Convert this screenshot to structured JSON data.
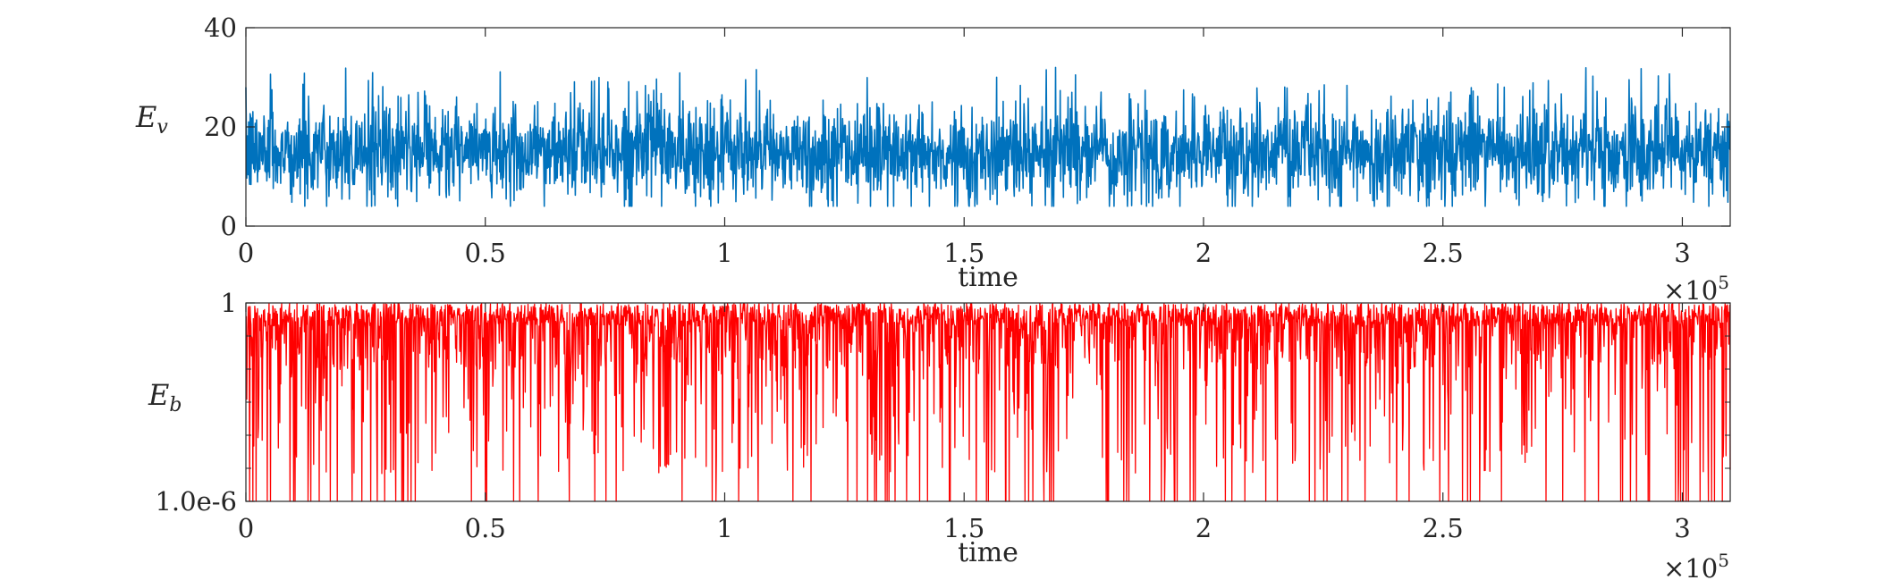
{
  "chart_data": [
    {
      "type": "line",
      "ylabel": {
        "base": "E",
        "sub": "v"
      },
      "xlabel": "time",
      "x_multiplier": {
        "prefix": "×10",
        "exp": "5"
      },
      "xlim": [
        0,
        3.1
      ],
      "ylim": [
        0,
        40
      ],
      "xticks": [
        0,
        0.5,
        1,
        1.5,
        2,
        2.5,
        3
      ],
      "xtick_labels": [
        "0",
        "0.5",
        "1",
        "1.5",
        "2",
        "2.5",
        "3"
      ],
      "yticks": [
        0,
        20,
        40
      ],
      "ytick_labels": [
        "0",
        "20",
        "40"
      ],
      "color": "#0072BD",
      "series": [
        {
          "mean": 15,
          "typical_band": [
            9,
            24
          ],
          "upper_extremes": 32,
          "lower_extremes": 4
        }
      ]
    },
    {
      "type": "line",
      "ylabel": {
        "base": "E",
        "sub": "b"
      },
      "xlabel": "time",
      "x_multiplier": {
        "prefix": "×10",
        "exp": "5"
      },
      "xlim": [
        0,
        3.1
      ],
      "ylim": [
        1e-06,
        1
      ],
      "yscale": "log",
      "xticks": [
        0,
        0.5,
        1,
        1.5,
        2,
        2.5,
        3
      ],
      "xtick_labels": [
        "0",
        "0.5",
        "1",
        "1.5",
        "2",
        "2.5",
        "3"
      ],
      "yticks": [
        1e-06,
        1
      ],
      "ytick_labels": [
        "1.0e-6",
        "1"
      ],
      "color": "#FF0000",
      "series": [
        {
          "dense_band": [
            0.01,
            1
          ],
          "spikes_down_to": 1e-06
        }
      ]
    }
  ]
}
